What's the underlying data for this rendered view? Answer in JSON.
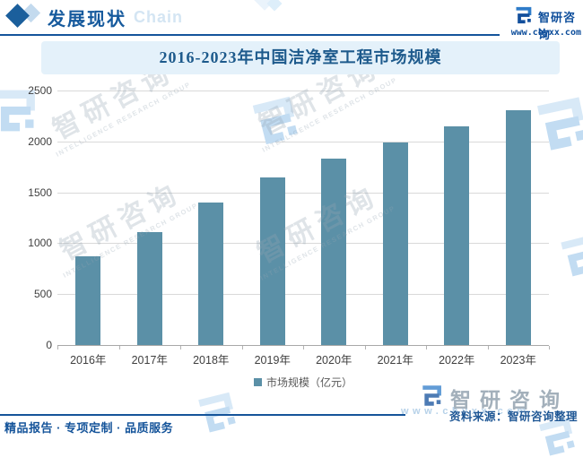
{
  "header": {
    "section_title": "发展现状",
    "section_title_ghost": "Chain",
    "brand_name": "智研咨询",
    "brand_url": "www.chyxx.com"
  },
  "chart_data": {
    "type": "bar",
    "title": "2016-2023年中国洁净室工程市场规模",
    "categories": [
      "2016年",
      "2017年",
      "2018年",
      "2019年",
      "2020年",
      "2021年",
      "2022年",
      "2023年"
    ],
    "values": [
      870,
      1110,
      1400,
      1650,
      1830,
      1990,
      2150,
      2310
    ],
    "series_name": "市场规模（亿元）",
    "ylim": [
      0,
      2500
    ],
    "yticks": [
      0,
      500,
      1000,
      1500,
      2000,
      2500
    ],
    "bar_color": "#5b90a7",
    "grid": true,
    "legend_position": "bottom"
  },
  "footer": {
    "source": "资料来源：智研咨询整理",
    "slogan": "精品报告 · 专项定制 · 品质服务"
  },
  "watermark": {
    "cn": "智研咨询",
    "en": "INTELLIGENCE RESEARCH GROUP",
    "url": "www.chyxx.com"
  }
}
